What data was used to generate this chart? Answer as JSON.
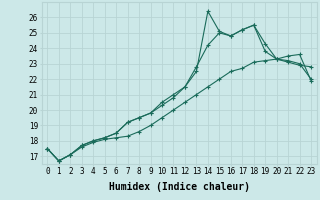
{
  "xlabel": "Humidex (Indice chaleur)",
  "bg_color": "#cce8e8",
  "grid_color": "#b8d4d4",
  "line_color": "#1a6b5a",
  "xlim": [
    -0.5,
    23.5
  ],
  "ylim": [
    16.5,
    27.0
  ],
  "xticks": [
    0,
    1,
    2,
    3,
    4,
    5,
    6,
    7,
    8,
    9,
    10,
    11,
    12,
    13,
    14,
    15,
    16,
    17,
    18,
    19,
    20,
    21,
    22,
    23
  ],
  "yticks": [
    17,
    18,
    19,
    20,
    21,
    22,
    23,
    24,
    25,
    26
  ],
  "line1_x": [
    0,
    1,
    2,
    3,
    4,
    5,
    6,
    7,
    8,
    9,
    10,
    11,
    12,
    13,
    14,
    15,
    16,
    17,
    18,
    19,
    20,
    21,
    22,
    23
  ],
  "line1_y": [
    17.5,
    16.7,
    17.1,
    17.6,
    17.9,
    18.1,
    18.2,
    18.3,
    18.6,
    19.0,
    19.5,
    20.0,
    20.5,
    21.0,
    21.5,
    22.0,
    22.5,
    22.7,
    23.1,
    23.2,
    23.3,
    23.5,
    23.6,
    21.9
  ],
  "line2_x": [
    0,
    1,
    2,
    3,
    4,
    5,
    6,
    7,
    8,
    9,
    10,
    11,
    12,
    13,
    14,
    15,
    16,
    17,
    18,
    19,
    20,
    21,
    22,
    23
  ],
  "line2_y": [
    17.5,
    16.7,
    17.1,
    17.7,
    18.0,
    18.2,
    18.5,
    19.2,
    19.5,
    19.8,
    20.5,
    21.0,
    21.5,
    22.5,
    26.4,
    25.1,
    24.8,
    25.2,
    25.5,
    23.8,
    23.3,
    23.2,
    23.0,
    22.0
  ],
  "line3_x": [
    0,
    1,
    2,
    3,
    4,
    5,
    6,
    7,
    8,
    9,
    10,
    11,
    12,
    13,
    14,
    15,
    16,
    17,
    18,
    19,
    20,
    21,
    22,
    23
  ],
  "line3_y": [
    17.5,
    16.7,
    17.1,
    17.7,
    18.0,
    18.2,
    18.5,
    19.2,
    19.5,
    19.8,
    20.3,
    20.8,
    21.5,
    22.8,
    24.2,
    25.0,
    24.8,
    25.2,
    25.5,
    24.3,
    23.3,
    23.1,
    22.9,
    22.8
  ],
  "marker": "+",
  "markersize": 3,
  "linewidth": 0.8,
  "xlabel_fontsize": 7,
  "tick_fontsize": 5.5
}
